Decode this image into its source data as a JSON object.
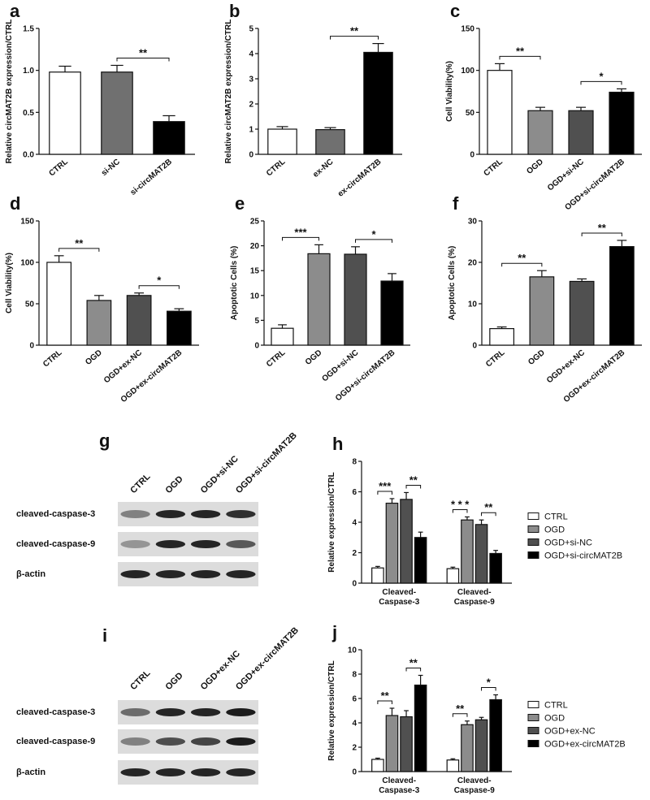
{
  "chart_data": [
    {
      "type": "bar",
      "panel": "a",
      "ylabel": "Relative circMAT2B expression/CTRL",
      "categories": [
        "CTRL",
        "si-NC",
        "si-circMAT2B"
      ],
      "values": [
        0.98,
        0.98,
        0.39
      ],
      "errors": [
        0.07,
        0.08,
        0.07
      ],
      "colors": [
        "#ffffff",
        "#707070",
        "#000000"
      ],
      "ylim": [
        0,
        1.5
      ],
      "yticks": [
        {
          "value": 0,
          "label": "0.0"
        },
        0.5,
        {
          "value": 1,
          "label": "1.0"
        },
        1.5
      ],
      "annotations": [
        {
          "text": "**",
          "between": [
            "si-NC",
            "si-circMAT2B"
          ]
        }
      ]
    },
    {
      "type": "bar",
      "panel": "b",
      "ylabel": "Relative circMAT2B expression/CTRL",
      "categories": [
        "CTRL",
        "ex-NC",
        "ex-circMAT2B"
      ],
      "values": [
        1.0,
        0.98,
        4.05
      ],
      "errors": [
        0.1,
        0.08,
        0.35
      ],
      "colors": [
        "#ffffff",
        "#707070",
        "#000000"
      ],
      "ylim": [
        0,
        5
      ],
      "yticks": [
        0,
        1,
        2,
        3,
        4,
        5
      ],
      "annotations": [
        {
          "text": "**",
          "between": [
            "ex-NC",
            "ex-circMAT2B"
          ]
        }
      ]
    },
    {
      "type": "bar",
      "panel": "c",
      "ylabel": "Cell Viability(%)",
      "categories": [
        "CTRL",
        "OGD",
        "OGD+si-NC",
        "OGD+si-circMAT2B"
      ],
      "values": [
        100,
        52,
        52,
        74
      ],
      "errors": [
        8,
        4,
        4,
        4
      ],
      "colors": [
        "#ffffff",
        "#8c8c8c",
        "#505050",
        "#000000"
      ],
      "ylim": [
        0,
        150
      ],
      "yticks": [
        0,
        50,
        100,
        150
      ],
      "annotations": [
        {
          "text": "**",
          "between": [
            "CTRL",
            "OGD"
          ]
        },
        {
          "text": "*",
          "between": [
            "OGD+si-NC",
            "OGD+si-circMAT2B"
          ]
        }
      ]
    },
    {
      "type": "bar",
      "panel": "d",
      "ylabel": "Cell Viability(%)",
      "categories": [
        "CTRL",
        "OGD",
        "OGD+ex-NC",
        "OGD+ex-circMAT2B"
      ],
      "values": [
        100,
        54,
        60,
        41
      ],
      "errors": [
        8,
        6,
        3,
        3
      ],
      "colors": [
        "#ffffff",
        "#8c8c8c",
        "#505050",
        "#000000"
      ],
      "ylim": [
        0,
        150
      ],
      "yticks": [
        0,
        50,
        100,
        150
      ],
      "annotations": [
        {
          "text": "**",
          "between": [
            "CTRL",
            "OGD"
          ]
        },
        {
          "text": "*",
          "between": [
            "OGD+ex-NC",
            "OGD+ex-circMAT2B"
          ]
        }
      ]
    },
    {
      "type": "bar",
      "panel": "e",
      "ylabel": "Apoptotic Cells (%)",
      "categories": [
        "CTRL",
        "OGD",
        "OGD+si-NC",
        "OGD+si-circMAT2B"
      ],
      "values": [
        3.4,
        18.4,
        18.3,
        12.9
      ],
      "errors": [
        0.7,
        1.8,
        1.5,
        1.5
      ],
      "colors": [
        "#ffffff",
        "#8c8c8c",
        "#505050",
        "#000000"
      ],
      "ylim": [
        0,
        25
      ],
      "yticks": [
        0,
        5,
        10,
        15,
        20,
        25
      ],
      "annotations": [
        {
          "text": "***",
          "between": [
            "CTRL",
            "OGD"
          ]
        },
        {
          "text": "*",
          "between": [
            "OGD+si-NC",
            "OGD+si-circMAT2B"
          ]
        }
      ]
    },
    {
      "type": "bar",
      "panel": "f",
      "ylabel": "Apoptotic Cells (%)",
      "categories": [
        "CTRL",
        "OGD",
        "OGD+ex-NC",
        "OGD+ex-circMAT2B"
      ],
      "values": [
        4.0,
        16.5,
        15.4,
        23.8
      ],
      "errors": [
        0.4,
        1.5,
        0.6,
        1.5
      ],
      "colors": [
        "#ffffff",
        "#8c8c8c",
        "#505050",
        "#000000"
      ],
      "ylim": [
        0,
        30
      ],
      "yticks": [
        0,
        10,
        20,
        30
      ],
      "annotations": [
        {
          "text": "**",
          "between": [
            "CTRL",
            "OGD"
          ]
        },
        {
          "text": "**",
          "between": [
            "OGD+ex-NC",
            "OGD+ex-circMAT2B"
          ]
        }
      ]
    },
    {
      "type": "bar",
      "panel": "h",
      "ylabel": "Relative expression/CTRL",
      "categories": [
        "Cleaved-Caspase-3",
        "Cleaved-Caspase-9"
      ],
      "legend": "right",
      "series": [
        {
          "name": "CTRL",
          "color": "#ffffff",
          "values": [
            1.0,
            0.95
          ],
          "errors": [
            0.1,
            0.1
          ]
        },
        {
          "name": "OGD",
          "color": "#8c8c8c",
          "values": [
            5.25,
            4.15
          ],
          "errors": [
            0.3,
            0.2
          ]
        },
        {
          "name": "OGD+si-NC",
          "color": "#505050",
          "values": [
            5.5,
            3.85
          ],
          "errors": [
            0.45,
            0.3
          ]
        },
        {
          "name": "OGD+si-circMAT2B",
          "color": "#000000",
          "values": [
            3.0,
            1.95
          ],
          "errors": [
            0.35,
            0.2
          ]
        }
      ],
      "ylim": [
        0,
        8
      ],
      "yticks": [
        0,
        2,
        4,
        6,
        8
      ],
      "annotations": [
        {
          "text": "***",
          "category": "Cleaved-Caspase-3",
          "between": [
            "CTRL",
            "OGD"
          ]
        },
        {
          "text": "**",
          "category": "Cleaved-Caspase-3",
          "between": [
            "OGD+si-NC",
            "OGD+si-circMAT2B"
          ]
        },
        {
          "text": "* * *",
          "category": "Cleaved-Caspase-9",
          "between": [
            "CTRL",
            "OGD"
          ]
        },
        {
          "text": "**",
          "category": "Cleaved-Caspase-9",
          "between": [
            "OGD+si-NC",
            "OGD+si-circMAT2B"
          ]
        }
      ]
    },
    {
      "type": "bar",
      "panel": "j",
      "ylabel": "Relative expression/CTRL",
      "categories": [
        "Cleaved-Caspase-3",
        "Cleaved-Caspase-9"
      ],
      "legend": "right",
      "series": [
        {
          "name": "CTRL",
          "color": "#ffffff",
          "values": [
            1.0,
            0.95
          ],
          "errors": [
            0.1,
            0.1
          ]
        },
        {
          "name": "OGD",
          "color": "#8c8c8c",
          "values": [
            4.6,
            3.85
          ],
          "errors": [
            0.6,
            0.3
          ]
        },
        {
          "name": "OGD+ex-NC",
          "color": "#505050",
          "values": [
            4.5,
            4.25
          ],
          "errors": [
            0.5,
            0.2
          ]
        },
        {
          "name": "OGD+ex-circMAT2B",
          "color": "#000000",
          "values": [
            7.1,
            5.9
          ],
          "errors": [
            0.8,
            0.4
          ]
        }
      ],
      "ylim": [
        0,
        10
      ],
      "yticks": [
        0,
        2,
        4,
        6,
        8,
        10
      ],
      "annotations": [
        {
          "text": "**",
          "category": "Cleaved-Caspase-3",
          "between": [
            "CTRL",
            "OGD"
          ]
        },
        {
          "text": "**",
          "category": "Cleaved-Caspase-3",
          "between": [
            "OGD+ex-NC",
            "OGD+ex-circMAT2B"
          ]
        },
        {
          "text": "**",
          "category": "Cleaved-Caspase-9",
          "between": [
            "CTRL",
            "OGD"
          ]
        },
        {
          "text": "*",
          "category": "Cleaved-Caspase-9",
          "between": [
            "OGD+ex-NC",
            "OGD+ex-circMAT2B"
          ]
        }
      ]
    }
  ],
  "blots": [
    {
      "panel": "g",
      "lanes": [
        "CTRL",
        "OGD",
        "OGD+si-NC",
        "OGD+si-circMAT2B"
      ],
      "rows": [
        "cleaved-caspase-3",
        "cleaved-caspase-9",
        "β-actin"
      ]
    },
    {
      "panel": "i",
      "lanes": [
        "CTRL",
        "OGD",
        "OGD+ex-NC",
        "OGD+ex-circMAT2B"
      ],
      "rows": [
        "cleaved-caspase-3",
        "cleaved-caspase-9",
        "β-actin"
      ]
    }
  ]
}
